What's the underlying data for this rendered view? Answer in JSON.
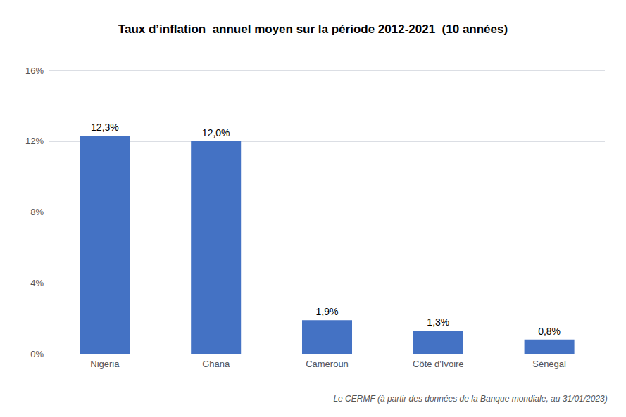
{
  "chart_data": {
    "type": "bar",
    "title": "Taux d’inflation  annuel moyen sur la période 2012-2021  (10 années)",
    "annotations": [
      "Le CERMF (à partir des données de la Banque mondiale, au 31/01/2023)"
    ],
    "categories": [
      "Nigeria",
      "Ghana",
      "Cameroun",
      "Côte d'Ivoire",
      "Sénégal"
    ],
    "values": [
      12.3,
      12.0,
      1.9,
      1.3,
      0.8
    ],
    "value_labels": [
      "12,3%",
      "12,0%",
      "1,9%",
      "1,3%",
      "0,8%"
    ],
    "color": "#4472C4",
    "ylim": [
      0,
      16
    ],
    "yticks": [
      {
        "value": 0,
        "label": "0%"
      },
      {
        "value": 4,
        "label": "4%"
      },
      {
        "value": 8,
        "label": "8%"
      },
      {
        "value": 12,
        "label": "12%"
      },
      {
        "value": 16,
        "label": "16%"
      }
    ],
    "grid": true,
    "data_labels": true
  }
}
